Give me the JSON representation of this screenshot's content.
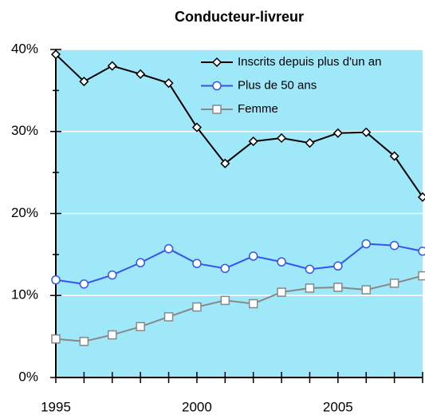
{
  "chart_data": {
    "type": "line",
    "title": "Conducteur-livreur",
    "x": [
      1995,
      1996,
      1997,
      1998,
      1999,
      2000,
      2001,
      2002,
      2003,
      2004,
      2005,
      2006,
      2007,
      2008
    ],
    "series": [
      {
        "name": "Inscrits depuis plus d'un an",
        "color": "#000000",
        "marker": "diamond",
        "values": [
          39.4,
          36.1,
          38.0,
          37.0,
          35.9,
          30.5,
          26.1,
          28.8,
          29.2,
          28.6,
          29.8,
          29.9,
          27.0,
          22.0
        ]
      },
      {
        "name": "Plus de 50 ans",
        "color": "#3355ee",
        "marker": "circle",
        "values": [
          11.9,
          11.4,
          12.5,
          14.0,
          15.7,
          13.9,
          13.3,
          14.8,
          14.1,
          13.2,
          13.6,
          16.3,
          16.1,
          15.4
        ]
      },
      {
        "name": "Femme",
        "color": "#888888",
        "marker": "square",
        "values": [
          4.7,
          4.4,
          5.2,
          6.2,
          7.4,
          8.6,
          9.4,
          9.0,
          10.4,
          10.9,
          11.0,
          10.7,
          11.5,
          12.4
        ]
      }
    ],
    "xlim": [
      1995,
      2008
    ],
    "xticks": [
      1995,
      2000,
      2005
    ],
    "ylim": [
      0,
      40
    ],
    "yticks": [
      {
        "value": 0,
        "label": "0%"
      },
      {
        "value": 10,
        "label": "10%"
      },
      {
        "value": 20,
        "label": "20%"
      },
      {
        "value": 30,
        "label": "30%"
      },
      {
        "value": 40,
        "label": "40%"
      }
    ],
    "yminor": [
      5,
      15,
      25,
      35
    ],
    "grid": true,
    "legend": "upper right",
    "background": "#9ee8fa"
  }
}
